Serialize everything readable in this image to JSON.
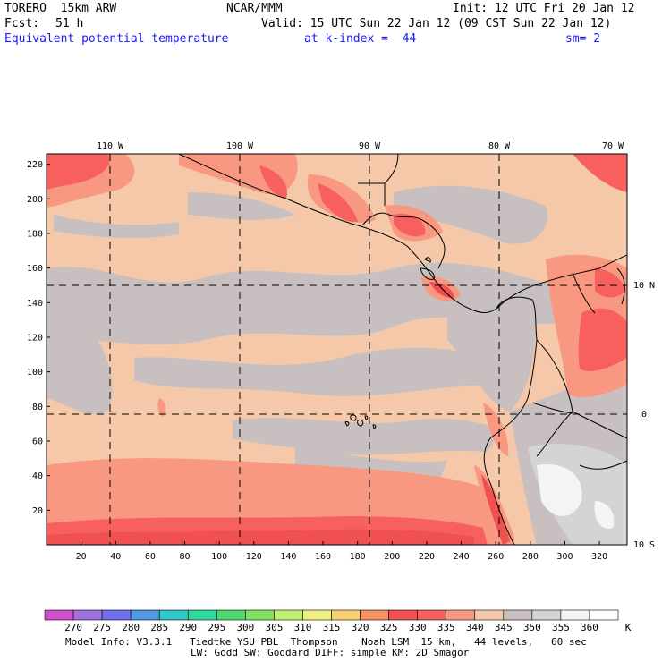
{
  "header": {
    "model": "TORERO  15km ARW",
    "org": "NCAR/MMM",
    "init": "Init: 12 UTC Fri 20 Jan 12",
    "fcst_label": "Fcst:",
    "fcst_value": "51 h",
    "valid": "Valid: 15 UTC Sun 22 Jan 12 (09 CST Sun 22 Jan 12)",
    "field": "Equivalent potential temperature",
    "level": "at k-index =  44",
    "smoothing": "sm= 2"
  },
  "map": {
    "lon_labels": [
      "110 W",
      "100 W",
      "90 W",
      "80 W",
      "70 W"
    ],
    "lat_labels": [
      "10 N",
      "0",
      "10 S"
    ],
    "y_ticks": [
      "20",
      "40",
      "60",
      "80",
      "100",
      "120",
      "140",
      "160",
      "180",
      "200",
      "220"
    ],
    "x_ticks": [
      "20",
      "40",
      "60",
      "80",
      "100",
      "120",
      "140",
      "160",
      "180",
      "200",
      "220",
      "240",
      "260",
      "280",
      "300",
      "320"
    ]
  },
  "colorbar": {
    "labels": [
      "270",
      "275",
      "280",
      "285",
      "290",
      "295",
      "300",
      "305",
      "310",
      "315",
      "320",
      "325",
      "330",
      "335",
      "340",
      "345",
      "350",
      "355",
      "360"
    ],
    "unit": "K",
    "colors": [
      "#d050d0",
      "#a070e0",
      "#7070f0",
      "#5098e8",
      "#30c8c8",
      "#30d8a0",
      "#50d870",
      "#80e060",
      "#c0f070",
      "#f0f080",
      "#f8d070",
      "#f89060",
      "#f05050",
      "#f86060",
      "#f89880",
      "#f4c8a8",
      "#c8c0c0",
      "#d4d4d4",
      "#f4f4f4"
    ]
  },
  "footer": {
    "line1": "Model Info: V3.3.1   Tiedtke YSU PBL  Thompson    Noah LSM  15 km,   44 levels,   60 sec",
    "line2": "LW: Godd SW: Goddard DIFF: simple KM: 2D Smagor"
  }
}
